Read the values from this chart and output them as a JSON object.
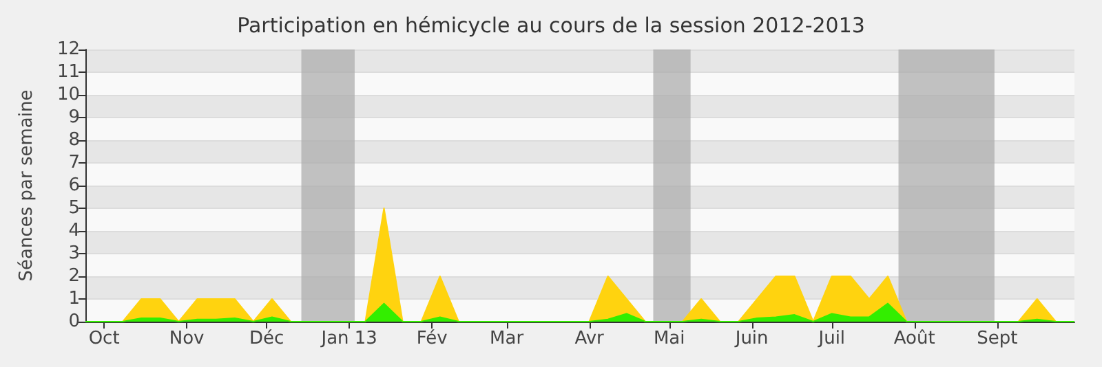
{
  "chart_data": {
    "type": "area",
    "title": "Participation en hémicycle au cours de la session 2012-2013",
    "ylabel": "Séances par semaine",
    "x": [
      "2012-09-24",
      "2012-10-01",
      "2012-10-08",
      "2012-10-15",
      "2012-10-22",
      "2012-10-29",
      "2012-11-05",
      "2012-11-12",
      "2012-11-19",
      "2012-11-26",
      "2012-12-03",
      "2012-12-10",
      "2012-12-17",
      "2012-12-24",
      "2012-12-31",
      "2013-01-07",
      "2013-01-14",
      "2013-01-21",
      "2013-01-28",
      "2013-02-04",
      "2013-02-11",
      "2013-02-18",
      "2013-02-25",
      "2013-03-04",
      "2013-03-11",
      "2013-03-18",
      "2013-03-25",
      "2013-04-01",
      "2013-04-08",
      "2013-04-15",
      "2013-04-22",
      "2013-04-29",
      "2013-05-06",
      "2013-05-13",
      "2013-05-20",
      "2013-05-27",
      "2013-06-03",
      "2013-06-10",
      "2013-06-17",
      "2013-06-24",
      "2013-07-01",
      "2013-07-08",
      "2013-07-15",
      "2013-07-22",
      "2013-07-29",
      "2013-08-05",
      "2013-08-12",
      "2013-08-19",
      "2013-08-26",
      "2013-09-02",
      "2013-09-09",
      "2013-09-16",
      "2013-09-23",
      "2013-09-30"
    ],
    "series": [
      {
        "color": "#ffd30f",
        "values": [
          0,
          0,
          0,
          1,
          1,
          0,
          1,
          1,
          1,
          0,
          1,
          0,
          0,
          0,
          0,
          0,
          5,
          0,
          0,
          2,
          0,
          0,
          0,
          0,
          0,
          0,
          0,
          0,
          2,
          1,
          0,
          0,
          0,
          1,
          0,
          0,
          1,
          2,
          2,
          0,
          2,
          2,
          1,
          2,
          0,
          0,
          0,
          0,
          0,
          0,
          0,
          1,
          0,
          0
        ]
      },
      {
        "color": "#33ee00",
        "values": [
          0,
          0,
          0,
          0.15,
          0.15,
          0,
          0.1,
          0.1,
          0.15,
          0,
          0.2,
          0,
          0,
          0,
          0,
          0,
          0.8,
          0,
          0,
          0.2,
          0,
          0,
          0,
          0,
          0,
          0,
          0,
          0,
          0.1,
          0.35,
          0,
          0,
          0,
          0.1,
          0,
          0,
          0.15,
          0.2,
          0.3,
          0,
          0.35,
          0.2,
          0.2,
          0.8,
          0,
          0,
          0,
          0,
          0,
          0,
          0,
          0.1,
          0,
          0
        ]
      }
    ],
    "xlim": [
      "2012-09-24",
      "2013-09-30"
    ],
    "xticks": [
      {
        "value": "2012-10-01",
        "label": "Oct"
      },
      {
        "value": "2012-11-01",
        "label": "Nov"
      },
      {
        "value": "2012-12-01",
        "label": "Déc"
      },
      {
        "value": "2013-01-01",
        "label": "Jan 13"
      },
      {
        "value": "2013-02-01",
        "label": "Fév"
      },
      {
        "value": "2013-03-01",
        "label": "Mar"
      },
      {
        "value": "2013-04-01",
        "label": "Avr"
      },
      {
        "value": "2013-05-01",
        "label": "Mai"
      },
      {
        "value": "2013-06-01",
        "label": "Juin"
      },
      {
        "value": "2013-07-01",
        "label": "Juil"
      },
      {
        "value": "2013-08-01",
        "label": "Août"
      },
      {
        "value": "2013-09-01",
        "label": "Sept"
      }
    ],
    "ylim": [
      0,
      12
    ],
    "yticks": [
      0,
      1,
      2,
      3,
      4,
      5,
      6,
      7,
      8,
      9,
      10,
      11,
      12
    ],
    "bands": [
      {
        "axis": "x",
        "from": "2012-12-14",
        "to": "2013-01-03",
        "color": "#aaaaaa"
      },
      {
        "axis": "x",
        "from": "2013-04-25",
        "to": "2013-05-09",
        "color": "#aaaaaa"
      },
      {
        "axis": "x",
        "from": "2013-07-26",
        "to": "2013-08-31",
        "color": "#aaaaaa"
      }
    ],
    "grid": "y",
    "marker": "none",
    "line_style": "solid"
  }
}
